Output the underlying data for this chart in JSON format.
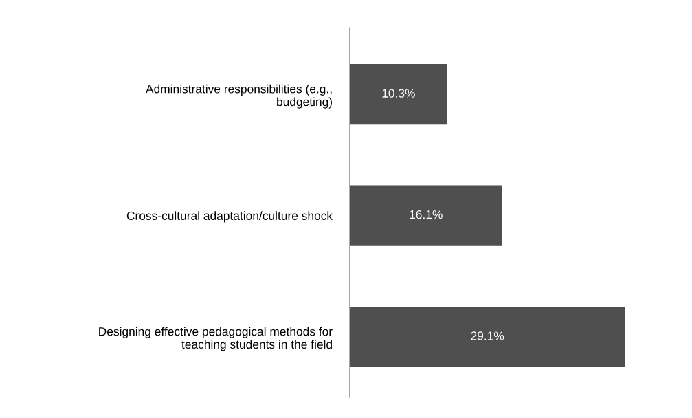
{
  "chart_data": {
    "type": "bar",
    "orientation": "horizontal",
    "categories": [
      "Administrative responsibilities (e.g.,\nbudgeting)",
      "Cross-cultural adaptation/culture shock",
      "Designing effective pedagogical methods for\nteaching students in the field"
    ],
    "values": [
      10.3,
      16.1,
      29.1
    ],
    "value_labels": [
      "10.3%",
      "16.1%",
      "29.1%"
    ],
    "color": "#4f4f4f",
    "grid": false,
    "legend": false
  }
}
